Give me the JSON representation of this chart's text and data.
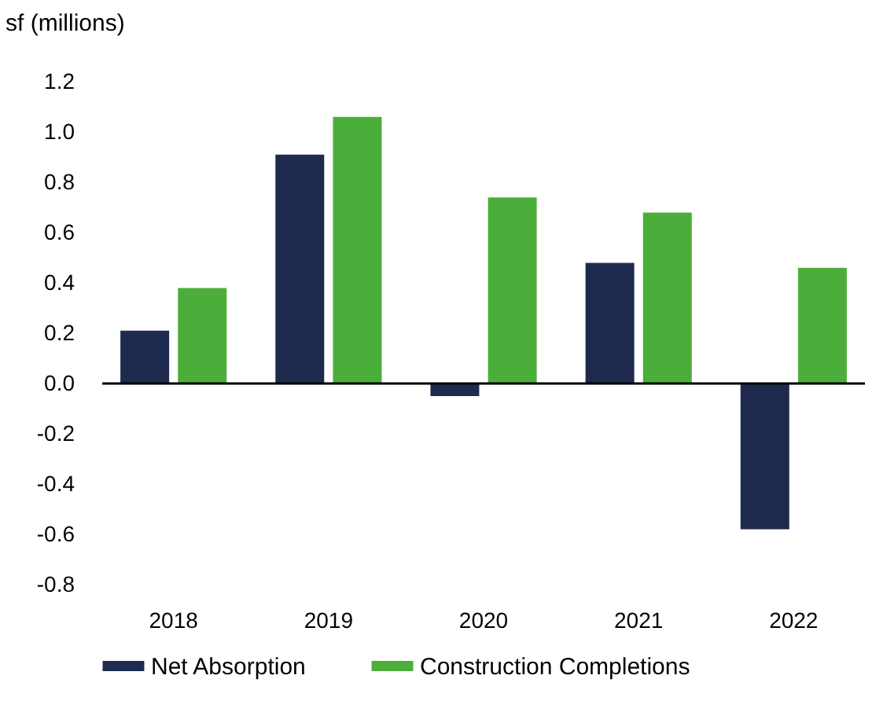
{
  "chart_data": {
    "type": "bar",
    "ylabel": "sf (millions)",
    "categories": [
      "2018",
      "2019",
      "2020",
      "2021",
      "2022"
    ],
    "series": [
      {
        "name": "Net Absorption",
        "color": "#1f2a4f",
        "values": [
          0.21,
          0.91,
          -0.05,
          0.48,
          -0.58
        ]
      },
      {
        "name": "Construction Completions",
        "color": "#4cae3a",
        "values": [
          0.38,
          1.06,
          0.74,
          0.68,
          0.46
        ]
      }
    ],
    "ylim": [
      -0.8,
      1.2
    ],
    "yticks": [
      {
        "value": -0.8,
        "label": "-0.8"
      },
      {
        "value": -0.6,
        "label": "-0.6"
      },
      {
        "value": -0.4,
        "label": "-0.4"
      },
      {
        "value": -0.2,
        "label": "-0.2"
      },
      {
        "value": 0,
        "label": "0.0"
      },
      {
        "value": 0.2,
        "label": "0.2"
      },
      {
        "value": 0.4,
        "label": "0.4"
      },
      {
        "value": 0.6,
        "label": "0.6"
      },
      {
        "value": 0.8,
        "label": "0.8"
      },
      {
        "value": 1.0,
        "label": "1.0"
      },
      {
        "value": 1.2,
        "label": "1.2"
      }
    ],
    "ref_lines": [
      {
        "axis": "y",
        "value": 0,
        "color": "#000000"
      }
    ],
    "grid": false,
    "legend": "bottom"
  }
}
